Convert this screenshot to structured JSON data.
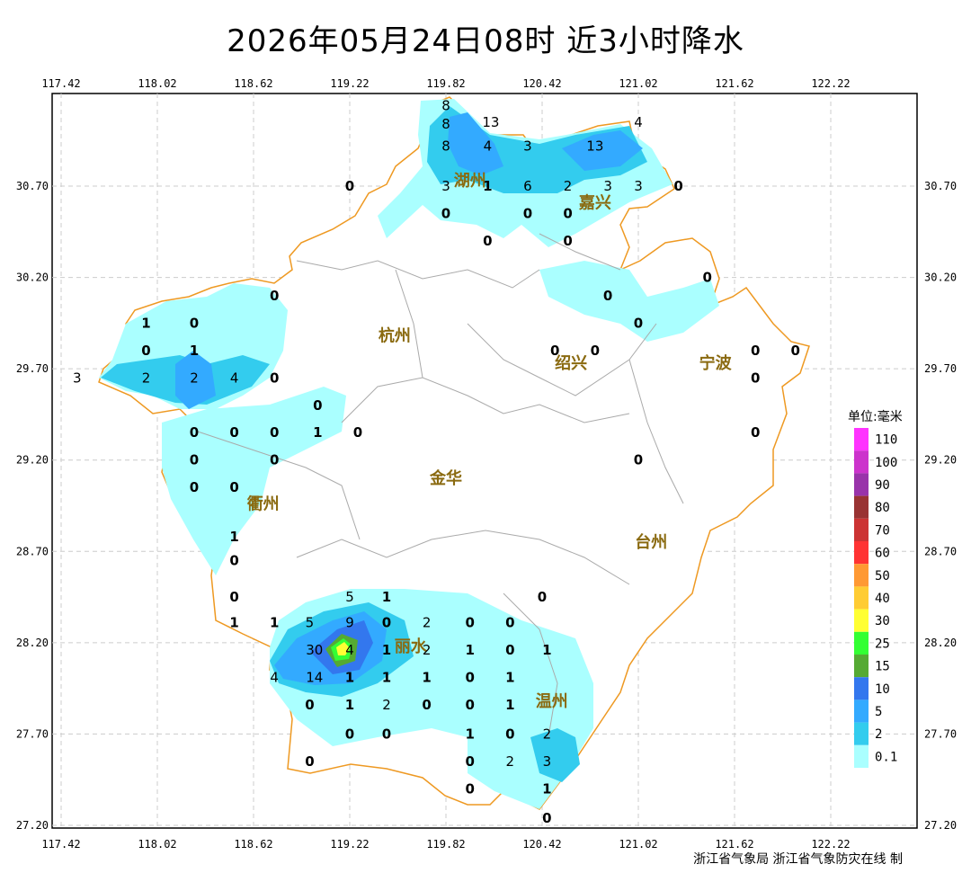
{
  "title": "2026年05月24日08时  近3小时降水",
  "credit": "浙江省气象局 浙江省气象防灾在线 制",
  "axes": {
    "lon_ticks": [
      "117.42",
      "118.02",
      "118.62",
      "119.22",
      "119.82",
      "120.42",
      "121.02",
      "121.62",
      "122.22"
    ],
    "lat_ticks": [
      "30.70",
      "30.20",
      "29.70",
      "29.20",
      "28.70",
      "28.20",
      "27.70",
      "27.20"
    ]
  },
  "cities": [
    {
      "name": "湖州",
      "lon": 119.97,
      "lat": 30.7
    },
    {
      "name": "嘉兴",
      "lon": 120.75,
      "lat": 30.58
    },
    {
      "name": "杭州",
      "lon": 119.5,
      "lat": 29.85
    },
    {
      "name": "绍兴",
      "lon": 120.6,
      "lat": 29.7
    },
    {
      "name": "宁波",
      "lon": 121.5,
      "lat": 29.7
    },
    {
      "name": "衢州",
      "lon": 118.68,
      "lat": 28.93
    },
    {
      "name": "金华",
      "lon": 119.82,
      "lat": 29.07
    },
    {
      "name": "台州",
      "lon": 121.1,
      "lat": 28.72
    },
    {
      "name": "丽水",
      "lon": 119.6,
      "lat": 28.15
    },
    {
      "name": "温州",
      "lon": 120.48,
      "lat": 27.85
    }
  ],
  "observations": [
    {
      "v": "8",
      "lon": 119.82,
      "lat": 31.14
    },
    {
      "v": "13",
      "lon": 120.1,
      "lat": 31.05
    },
    {
      "v": "8",
      "lon": 119.82,
      "lat": 31.04
    },
    {
      "v": "4",
      "lon": 121.02,
      "lat": 31.05
    },
    {
      "v": "8",
      "lon": 119.82,
      "lat": 30.92
    },
    {
      "v": "4",
      "lon": 120.08,
      "lat": 30.92
    },
    {
      "v": "3",
      "lon": 120.33,
      "lat": 30.92
    },
    {
      "v": "13",
      "lon": 120.75,
      "lat": 30.92
    },
    {
      "v": "0",
      "lon": 119.22,
      "lat": 30.7
    },
    {
      "v": "3",
      "lon": 119.82,
      "lat": 30.7
    },
    {
      "v": "1",
      "lon": 120.08,
      "lat": 30.7
    },
    {
      "v": "6",
      "lon": 120.33,
      "lat": 30.7
    },
    {
      "v": "2",
      "lon": 120.58,
      "lat": 30.7
    },
    {
      "v": "3",
      "lon": 120.83,
      "lat": 30.7
    },
    {
      "v": "3",
      "lon": 121.02,
      "lat": 30.7
    },
    {
      "v": "0",
      "lon": 121.27,
      "lat": 30.7
    },
    {
      "v": "0",
      "lon": 119.82,
      "lat": 30.55
    },
    {
      "v": "0",
      "lon": 120.33,
      "lat": 30.55
    },
    {
      "v": "0",
      "lon": 120.58,
      "lat": 30.55
    },
    {
      "v": "0",
      "lon": 120.08,
      "lat": 30.4
    },
    {
      "v": "0",
      "lon": 120.58,
      "lat": 30.4
    },
    {
      "v": "0",
      "lon": 121.45,
      "lat": 30.2
    },
    {
      "v": "0",
      "lon": 118.75,
      "lat": 30.1
    },
    {
      "v": "0",
      "lon": 120.83,
      "lat": 30.1
    },
    {
      "v": "1",
      "lon": 117.95,
      "lat": 29.95
    },
    {
      "v": "0",
      "lon": 118.25,
      "lat": 29.95
    },
    {
      "v": "0",
      "lon": 121.02,
      "lat": 29.95
    },
    {
      "v": "0",
      "lon": 117.95,
      "lat": 29.8
    },
    {
      "v": "1",
      "lon": 118.25,
      "lat": 29.8
    },
    {
      "v": "0",
      "lon": 120.5,
      "lat": 29.8
    },
    {
      "v": "0",
      "lon": 120.75,
      "lat": 29.8
    },
    {
      "v": "0",
      "lon": 121.75,
      "lat": 29.8
    },
    {
      "v": "0",
      "lon": 122.0,
      "lat": 29.8
    },
    {
      "v": "3",
      "lon": 117.52,
      "lat": 29.65
    },
    {
      "v": "2",
      "lon": 117.95,
      "lat": 29.65
    },
    {
      "v": "2",
      "lon": 118.25,
      "lat": 29.65
    },
    {
      "v": "4",
      "lon": 118.5,
      "lat": 29.65
    },
    {
      "v": "0",
      "lon": 118.75,
      "lat": 29.65
    },
    {
      "v": "0",
      "lon": 121.75,
      "lat": 29.65
    },
    {
      "v": "0",
      "lon": 119.02,
      "lat": 29.5
    },
    {
      "v": "0",
      "lon": 118.25,
      "lat": 29.35
    },
    {
      "v": "0",
      "lon": 118.5,
      "lat": 29.35
    },
    {
      "v": "0",
      "lon": 118.75,
      "lat": 29.35
    },
    {
      "v": "1",
      "lon": 119.02,
      "lat": 29.35
    },
    {
      "v": "0",
      "lon": 119.27,
      "lat": 29.35
    },
    {
      "v": "0",
      "lon": 121.75,
      "lat": 29.35
    },
    {
      "v": "0",
      "lon": 118.25,
      "lat": 29.2
    },
    {
      "v": "0",
      "lon": 118.75,
      "lat": 29.2
    },
    {
      "v": "0",
      "lon": 121.02,
      "lat": 29.2
    },
    {
      "v": "0",
      "lon": 118.25,
      "lat": 29.05
    },
    {
      "v": "0",
      "lon": 118.5,
      "lat": 29.05
    },
    {
      "v": "1",
      "lon": 118.5,
      "lat": 28.78
    },
    {
      "v": "0",
      "lon": 118.5,
      "lat": 28.65
    },
    {
      "v": "0",
      "lon": 118.5,
      "lat": 28.45
    },
    {
      "v": "0",
      "lon": 120.42,
      "lat": 28.45
    },
    {
      "v": "5",
      "lon": 119.22,
      "lat": 28.45
    },
    {
      "v": "1",
      "lon": 119.45,
      "lat": 28.45
    },
    {
      "v": "1",
      "lon": 118.5,
      "lat": 28.31
    },
    {
      "v": "1",
      "lon": 118.75,
      "lat": 28.31
    },
    {
      "v": "5",
      "lon": 118.97,
      "lat": 28.31
    },
    {
      "v": "9",
      "lon": 119.22,
      "lat": 28.31
    },
    {
      "v": "0",
      "lon": 119.45,
      "lat": 28.31
    },
    {
      "v": "2",
      "lon": 119.7,
      "lat": 28.31
    },
    {
      "v": "0",
      "lon": 119.97,
      "lat": 28.31
    },
    {
      "v": "0",
      "lon": 120.22,
      "lat": 28.31
    },
    {
      "v": "30",
      "lon": 119.0,
      "lat": 28.16
    },
    {
      "v": "4",
      "lon": 119.22,
      "lat": 28.16
    },
    {
      "v": "1",
      "lon": 119.45,
      "lat": 28.16
    },
    {
      "v": "2",
      "lon": 119.7,
      "lat": 28.16
    },
    {
      "v": "1",
      "lon": 119.97,
      "lat": 28.16
    },
    {
      "v": "0",
      "lon": 120.22,
      "lat": 28.16
    },
    {
      "v": "1",
      "lon": 120.45,
      "lat": 28.16
    },
    {
      "v": "4",
      "lon": 118.75,
      "lat": 28.01
    },
    {
      "v": "14",
      "lon": 119.0,
      "lat": 28.01
    },
    {
      "v": "1",
      "lon": 119.22,
      "lat": 28.01
    },
    {
      "v": "1",
      "lon": 119.45,
      "lat": 28.01
    },
    {
      "v": "1",
      "lon": 119.7,
      "lat": 28.01
    },
    {
      "v": "0",
      "lon": 119.97,
      "lat": 28.01
    },
    {
      "v": "1",
      "lon": 120.22,
      "lat": 28.01
    },
    {
      "v": "0",
      "lon": 118.97,
      "lat": 27.86
    },
    {
      "v": "1",
      "lon": 119.22,
      "lat": 27.86
    },
    {
      "v": "2",
      "lon": 119.45,
      "lat": 27.86
    },
    {
      "v": "0",
      "lon": 119.7,
      "lat": 27.86
    },
    {
      "v": "0",
      "lon": 119.97,
      "lat": 27.86
    },
    {
      "v": "1",
      "lon": 120.22,
      "lat": 27.86
    },
    {
      "v": "0",
      "lon": 119.22,
      "lat": 27.7
    },
    {
      "v": "0",
      "lon": 119.45,
      "lat": 27.7
    },
    {
      "v": "1",
      "lon": 119.97,
      "lat": 27.7
    },
    {
      "v": "0",
      "lon": 120.22,
      "lat": 27.7
    },
    {
      "v": "2",
      "lon": 120.45,
      "lat": 27.7
    },
    {
      "v": "0",
      "lon": 118.97,
      "lat": 27.55
    },
    {
      "v": "0",
      "lon": 119.97,
      "lat": 27.55
    },
    {
      "v": "2",
      "lon": 120.22,
      "lat": 27.55
    },
    {
      "v": "3",
      "lon": 120.45,
      "lat": 27.55
    },
    {
      "v": "0",
      "lon": 119.97,
      "lat": 27.4
    },
    {
      "v": "1",
      "lon": 120.45,
      "lat": 27.4
    },
    {
      "v": "0",
      "lon": 120.45,
      "lat": 27.24
    }
  ],
  "legend": {
    "unit": "单位:毫米",
    "levels": [
      {
        "label": "110",
        "color": "#ff33ff"
      },
      {
        "label": "100",
        "color": "#cc33cc"
      },
      {
        "label": "90",
        "color": "#9933aa"
      },
      {
        "label": "80",
        "color": "#993333"
      },
      {
        "label": "70",
        "color": "#cc3333"
      },
      {
        "label": "60",
        "color": "#ff3333"
      },
      {
        "label": "50",
        "color": "#ff9933"
      },
      {
        "label": "40",
        "color": "#ffcc33"
      },
      {
        "label": "30",
        "color": "#ffff33"
      },
      {
        "label": "25",
        "color": "#33ff33"
      },
      {
        "label": "15",
        "color": "#55aa33"
      },
      {
        "label": "10",
        "color": "#3377ee"
      },
      {
        "label": "5",
        "color": "#33aaff"
      },
      {
        "label": "2",
        "color": "#33ccee"
      },
      {
        "label": "0.1",
        "color": "#aaffff"
      }
    ]
  },
  "colors": {
    "coast": "#ee9922",
    "boundary": "#aaaaaa",
    "grid": "#cccccc"
  }
}
